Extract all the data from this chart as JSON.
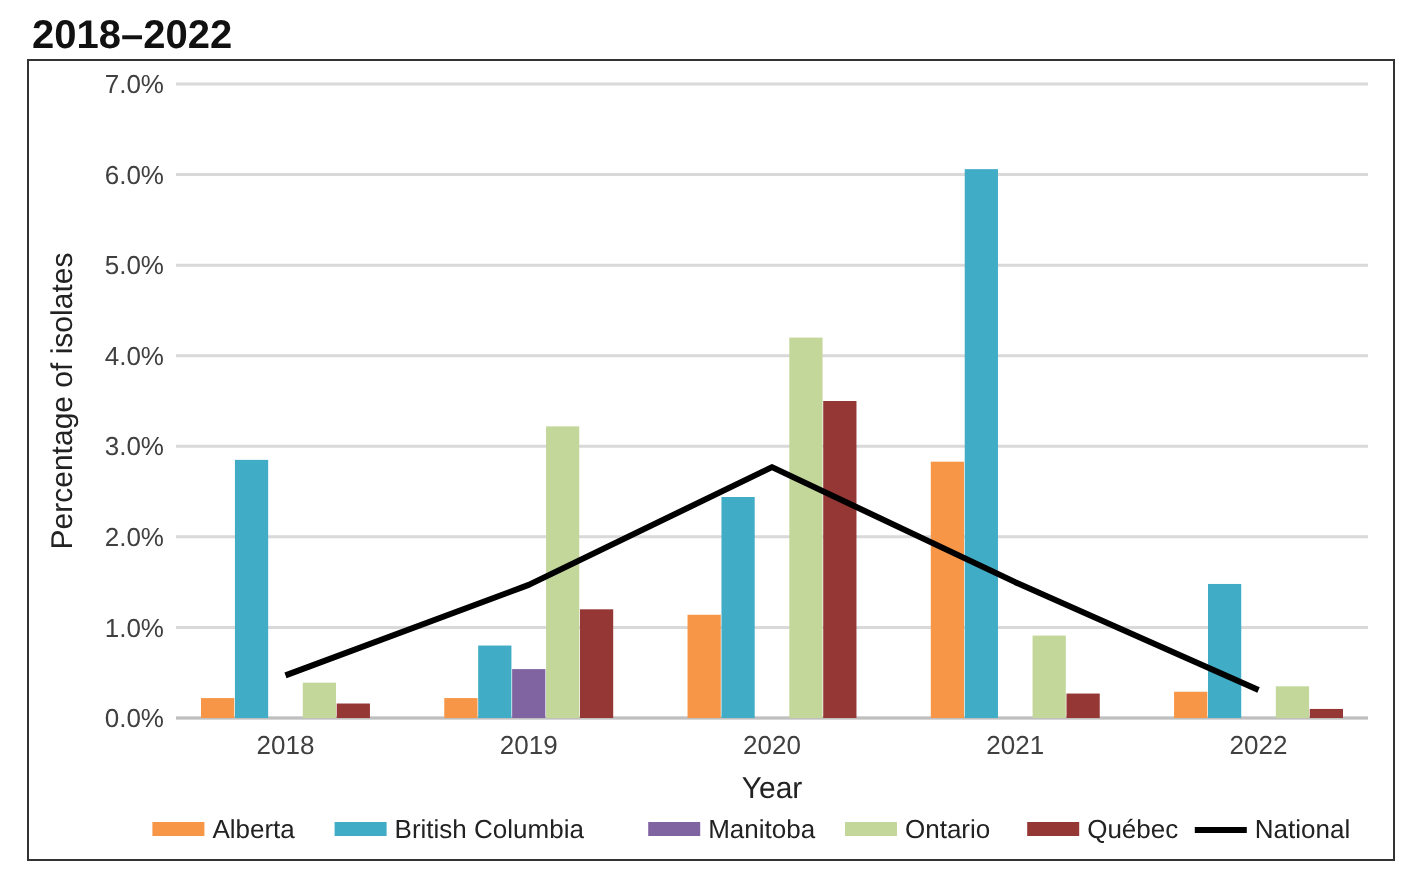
{
  "chart_data": {
    "type": "bar",
    "title": "2018–2022",
    "xlabel": "Year",
    "ylabel": "Percentage of isolates",
    "categories": [
      "2018",
      "2019",
      "2020",
      "2021",
      "2022"
    ],
    "series": [
      {
        "name": "Alberta",
        "color": "#f79646",
        "values": [
          0.22,
          0.22,
          1.14,
          2.83,
          0.29
        ]
      },
      {
        "name": "British Columbia",
        "color": "#41acc6",
        "values": [
          2.85,
          0.8,
          2.44,
          6.06,
          1.48
        ]
      },
      {
        "name": "Manitoba",
        "color": "#8064a2",
        "values": [
          null,
          0.54,
          null,
          null,
          null
        ]
      },
      {
        "name": "Ontario",
        "color": "#c4d79b",
        "values": [
          0.39,
          3.22,
          4.2,
          0.91,
          0.35
        ]
      },
      {
        "name": "Québec",
        "color": "#953735",
        "values": [
          0.16,
          1.2,
          3.5,
          0.27,
          0.1
        ]
      },
      {
        "name": "National",
        "type": "line",
        "color": "#000000",
        "values": [
          0.47,
          1.47,
          2.77,
          1.5,
          0.31
        ]
      }
    ],
    "ylim": [
      0,
      7
    ],
    "yticks": [
      {
        "value": 0,
        "label": "0.0%"
      },
      {
        "value": 1,
        "label": "1.0%"
      },
      {
        "value": 2,
        "label": "2.0%"
      },
      {
        "value": 3,
        "label": "3.0%"
      },
      {
        "value": 4,
        "label": "4.0%"
      },
      {
        "value": 5,
        "label": "5.0%"
      },
      {
        "value": 6,
        "label": "6.0%"
      },
      {
        "value": 7,
        "label": "7.0%"
      }
    ],
    "grid": "y",
    "legend": "bottom"
  }
}
